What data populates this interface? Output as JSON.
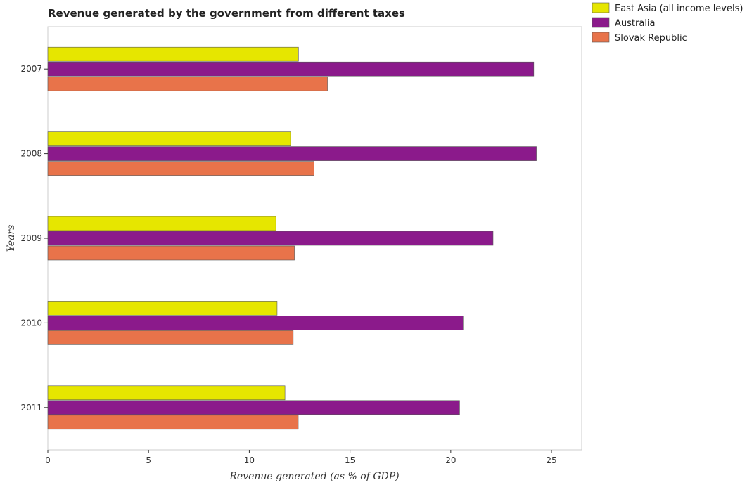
{
  "chart_data": {
    "type": "bar",
    "orientation": "horizontal",
    "title": "Revenue generated by the government from different taxes",
    "xlabel": "Revenue generated (as % of GDP)",
    "ylabel": "Years",
    "categories": [
      "2007",
      "2008",
      "2009",
      "2010",
      "2011"
    ],
    "xlim": [
      0,
      26.5
    ],
    "xticks": [
      0,
      5,
      10,
      15,
      20,
      25
    ],
    "xtick_labels": [
      "0",
      "5",
      "10",
      "15",
      "20",
      "25"
    ],
    "grid": false,
    "legend_position": "top-right",
    "series": [
      {
        "name": "East Asia (all income levels)",
        "color": "#e6e600",
        "values": [
          12.44,
          12.05,
          11.32,
          11.38,
          11.77
        ]
      },
      {
        "name": "Australia",
        "color": "#8b1a8b",
        "values": [
          24.12,
          24.25,
          22.1,
          20.61,
          20.44
        ]
      },
      {
        "name": "Slovak Republic",
        "color": "#e8734a",
        "values": [
          13.88,
          13.22,
          12.24,
          12.18,
          12.43
        ]
      }
    ]
  }
}
